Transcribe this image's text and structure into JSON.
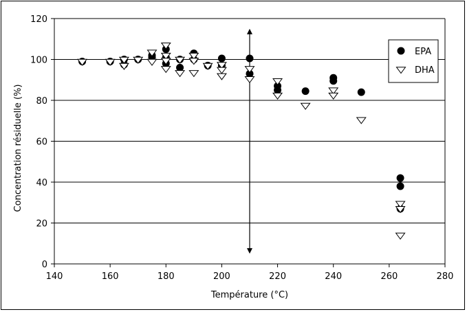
{
  "chart_data": {
    "type": "scatter",
    "xlabel": "Température (°C)",
    "ylabel": "Concentration résiduelle (%)",
    "xlim": [
      140,
      280
    ],
    "ylim": [
      0,
      120
    ],
    "xticks": [
      "140",
      "160",
      "180",
      "200",
      "220",
      "240",
      "260",
      "280"
    ],
    "yticks": [
      "0",
      "20",
      "40",
      "60",
      "80",
      "100",
      "120"
    ],
    "grid": "horizontal",
    "legend": "right",
    "series": [
      {
        "name": "EPA",
        "marker": "circle",
        "color": "#000000",
        "points": [
          [
            150,
            99
          ],
          [
            160,
            99
          ],
          [
            165,
            97.5
          ],
          [
            165,
            100
          ],
          [
            170,
            100
          ],
          [
            175,
            102
          ],
          [
            175,
            101
          ],
          [
            180,
            105
          ],
          [
            180,
            101
          ],
          [
            180,
            98
          ],
          [
            185,
            96
          ],
          [
            185,
            100
          ],
          [
            190,
            103
          ],
          [
            190,
            100
          ],
          [
            195,
            97
          ],
          [
            200,
            100.5
          ],
          [
            200,
            97
          ],
          [
            210,
            100.5
          ],
          [
            210,
            93
          ],
          [
            220,
            87
          ],
          [
            220,
            85
          ],
          [
            230,
            84.5
          ],
          [
            240,
            91
          ],
          [
            240,
            89.5
          ],
          [
            250,
            84
          ],
          [
            264,
            42
          ],
          [
            264,
            38
          ],
          [
            264,
            27
          ]
        ]
      },
      {
        "name": "DHA",
        "marker": "triangle-down",
        "color": "#ffffff",
        "points": [
          [
            150,
            99
          ],
          [
            160,
            99
          ],
          [
            165,
            100
          ],
          [
            165,
            97
          ],
          [
            170,
            100
          ],
          [
            175,
            103.5
          ],
          [
            175,
            99
          ],
          [
            180,
            107
          ],
          [
            180,
            102
          ],
          [
            180,
            99.5
          ],
          [
            180,
            95.5
          ],
          [
            185,
            100
          ],
          [
            185,
            93.5
          ],
          [
            190,
            102
          ],
          [
            190,
            99.5
          ],
          [
            190,
            93.5
          ],
          [
            195,
            97
          ],
          [
            200,
            97.5
          ],
          [
            200,
            95
          ],
          [
            200,
            92
          ],
          [
            210,
            95.5
          ],
          [
            210,
            90.5
          ],
          [
            220,
            89.5
          ],
          [
            220,
            82.5
          ],
          [
            230,
            77.5
          ],
          [
            240,
            85
          ],
          [
            240,
            82.5
          ],
          [
            250,
            70.5
          ],
          [
            264,
            29.5
          ],
          [
            264,
            27
          ],
          [
            264,
            14
          ]
        ]
      }
    ],
    "annotations": [
      {
        "type": "double-arrow",
        "x": 210,
        "y1": 113,
        "y2": 7
      }
    ]
  }
}
